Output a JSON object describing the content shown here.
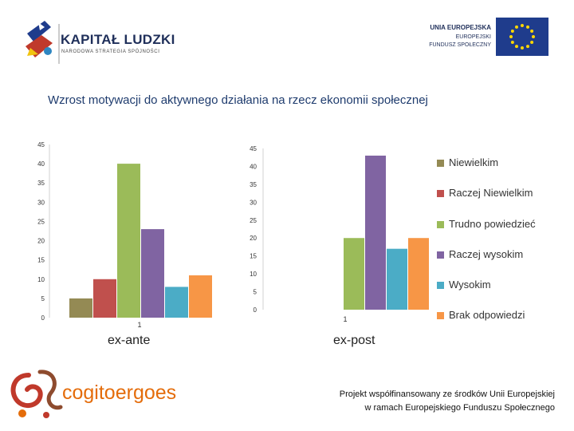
{
  "header": {
    "kapital_title": "KAPITAŁ LUDZKI",
    "kapital_subtitle": "NARODOWA STRATEGIA SPÓJNOŚCI",
    "eu_line1": "UNIA EUROPEJSKA",
    "eu_line2": "EUROPEJSKI",
    "eu_line3": "FUNDUSZ SPOŁECZNY"
  },
  "title": "Wzrost motywacji do aktywnego działania na rzecz ekonomii społecznej",
  "chart_data": [
    {
      "type": "bar",
      "title": "ex-ante",
      "categories": [
        "1"
      ],
      "ylim": [
        0,
        45
      ],
      "yticks": [
        0,
        5,
        10,
        15,
        20,
        25,
        30,
        35,
        40,
        45
      ],
      "series": [
        {
          "name": "Niewielkim",
          "values": [
            5
          ]
        },
        {
          "name": "Raczej Niewielkim",
          "values": [
            10
          ]
        },
        {
          "name": "Trudno powiedzieć",
          "values": [
            40
          ]
        },
        {
          "name": "Raczej wysokim",
          "values": [
            23
          ]
        },
        {
          "name": "Wysokim",
          "values": [
            8
          ]
        },
        {
          "name": "Brak odpowiedzi",
          "values": [
            11
          ]
        }
      ]
    },
    {
      "type": "bar",
      "title": "ex-post",
      "categories": [
        "1"
      ],
      "ylim": [
        0,
        45
      ],
      "yticks": [
        0,
        5,
        10,
        15,
        20,
        25,
        30,
        35,
        40,
        45
      ],
      "series": [
        {
          "name": "Niewielkim",
          "values": [
            0
          ]
        },
        {
          "name": "Raczej Niewielkim",
          "values": [
            0
          ]
        },
        {
          "name": "Trudno powiedzieć",
          "values": [
            20
          ]
        },
        {
          "name": "Raczej wysokim",
          "values": [
            43
          ]
        },
        {
          "name": "Wysokim",
          "values": [
            17
          ]
        },
        {
          "name": "Brak odpowiedzi",
          "values": [
            20
          ]
        }
      ]
    }
  ],
  "legend": [
    {
      "label": "Niewielkim",
      "color": "#948a54"
    },
    {
      "label": "Raczej Niewielkim",
      "color": "#c0504d"
    },
    {
      "label": "Trudno powiedzieć",
      "color": "#9bbb59"
    },
    {
      "label": "Raczej wysokim",
      "color": "#8064a2"
    },
    {
      "label": "Wysokim",
      "color": "#4bacc6"
    },
    {
      "label": "Brak odpowiedzi",
      "color": "#f79646"
    }
  ],
  "cogito_text": "cogitoergoes",
  "footer": {
    "line1": "Projekt  współfinansowany ze środków Unii Europejskiej",
    "line2": "w ramach Europejskiego Funduszu Społecznego"
  }
}
